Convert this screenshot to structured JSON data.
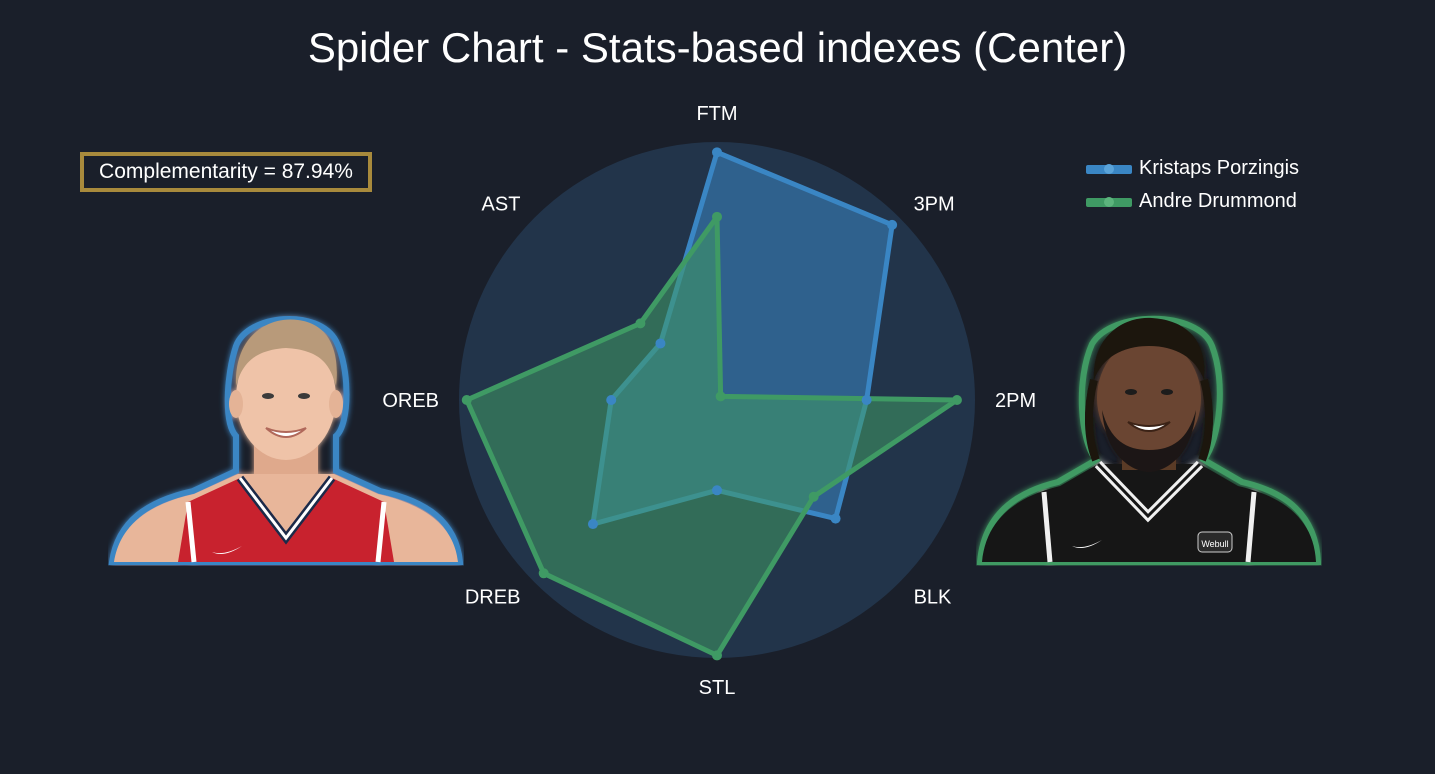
{
  "title": "Spider Chart - Stats-based indexes (Center)",
  "complementarity": "Complementarity = 87.94%",
  "colors": {
    "background": "#1a1f2a",
    "circle_fill": "#22344a",
    "kristaps": "#3a86c4",
    "andre": "#3f9a64",
    "box_border": "#a88a3c"
  },
  "chart_data": {
    "type": "radar",
    "title": "Spider Chart - Stats-based indexes (Center)",
    "axes": [
      "FTM",
      "3PM",
      "2PM",
      "BLK",
      "STL",
      "DREB",
      "OREB",
      "AST"
    ],
    "range": [
      0,
      1
    ],
    "grid": false,
    "legend_position": "top-right",
    "series": [
      {
        "name": "Kristaps Porzingis",
        "color": "#3a86c4",
        "values": [
          0.96,
          0.96,
          0.58,
          0.65,
          0.35,
          0.68,
          0.41,
          0.31
        ]
      },
      {
        "name": "Andre Drummond",
        "color": "#3f9a64",
        "values": [
          0.71,
          0.02,
          0.93,
          0.53,
          0.99,
          0.95,
          0.97,
          0.42
        ]
      }
    ]
  },
  "photos": {
    "left": {
      "player": "Kristaps Porzingis",
      "icon": "player-portrait-red-jersey",
      "jersey_color": "#c8202f",
      "glow_color": "#3a86c4"
    },
    "right": {
      "player": "Andre Drummond",
      "icon": "player-portrait-black-jersey",
      "jersey_color": "#151515",
      "glow_color": "#3f9a64",
      "jersey_text": "Webull"
    }
  }
}
